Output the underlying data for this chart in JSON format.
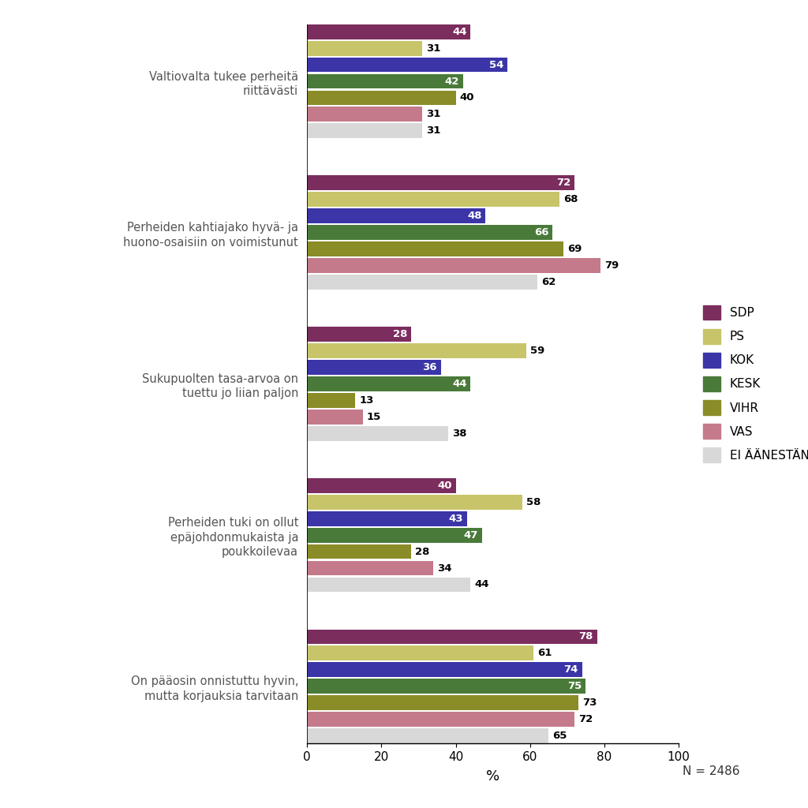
{
  "questions": [
    "Valtiovalta tukee perheitä\nriittävästi",
    "Perheiden kahtiajako hyvä- ja\nhuono-osaisiin on voimistunut",
    "Sukupuolten tasa-arvoa on\ntuettu jo liian paljon",
    "Perheiden tuki on ollut\nepäjohdonmukaista ja\npoukkoilevaa",
    "On pääosin onnistuttu hyvin,\nmutta korjauksia tarvitaan"
  ],
  "parties": [
    "SDP",
    "PS",
    "KOK",
    "KESK",
    "VIHR",
    "VAS",
    "EI ÄÄNESTÄNYT"
  ],
  "colors": [
    "#7b2d5e",
    "#c8c46a",
    "#3b35a8",
    "#4a7a3a",
    "#8a8c28",
    "#c47a8a",
    "#d8d8d8"
  ],
  "data": [
    [
      44,
      31,
      54,
      42,
      40,
      31,
      31
    ],
    [
      72,
      68,
      48,
      66,
      69,
      79,
      62
    ],
    [
      28,
      59,
      36,
      44,
      13,
      15,
      38
    ],
    [
      40,
      58,
      43,
      47,
      28,
      34,
      44
    ],
    [
      78,
      61,
      74,
      75,
      73,
      72,
      65
    ]
  ],
  "xlim": [
    0,
    100
  ],
  "xticks": [
    0,
    20,
    40,
    60,
    80,
    100
  ],
  "xlabel": "%",
  "n_label": "N = 2486",
  "background_color": "#ffffff",
  "dark_bar_parties": [
    0,
    2,
    3
  ],
  "label_inside_threshold": 20
}
